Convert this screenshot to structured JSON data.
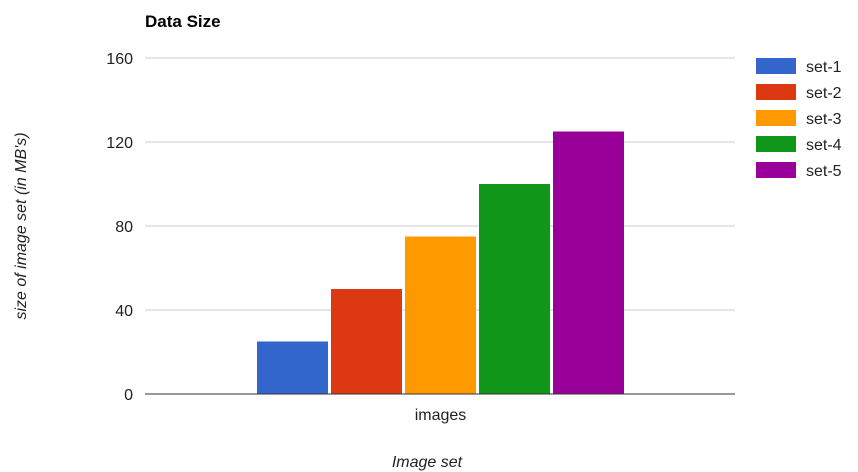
{
  "chart_data": {
    "type": "bar",
    "title": "Data Size",
    "xlabel": "Image set",
    "ylabel": "size of image set (in MB's)",
    "categories": [
      "images"
    ],
    "series": [
      {
        "name": "set-1",
        "values": [
          25
        ],
        "color": "#3366cc"
      },
      {
        "name": "set-2",
        "values": [
          50
        ],
        "color": "#dc3912"
      },
      {
        "name": "set-3",
        "values": [
          75
        ],
        "color": "#ff9900"
      },
      {
        "name": "set-4",
        "values": [
          100
        ],
        "color": "#109618"
      },
      {
        "name": "set-5",
        "values": [
          125
        ],
        "color": "#990099"
      }
    ],
    "ylim": [
      0,
      160
    ],
    "yticks": [
      0,
      40,
      80,
      120,
      160
    ],
    "grid": true,
    "legend_position": "right"
  }
}
